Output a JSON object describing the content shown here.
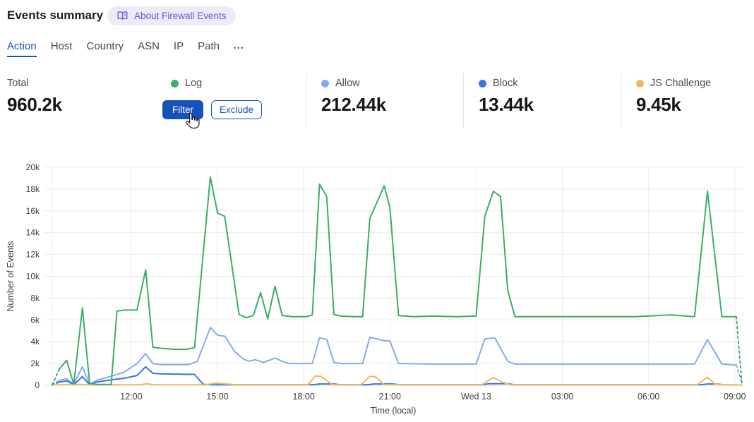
{
  "header": {
    "title": "Events summary",
    "about_badge": "About Firewall Events"
  },
  "tabs": {
    "items": [
      {
        "label": "Action",
        "active": true
      },
      {
        "label": "Host",
        "active": false
      },
      {
        "label": "Country",
        "active": false
      },
      {
        "label": "ASN",
        "active": false
      },
      {
        "label": "IP",
        "active": false
      },
      {
        "label": "Path",
        "active": false
      }
    ],
    "more": "•••"
  },
  "stats": {
    "total_label": "Total",
    "total_value": "960.2k",
    "log": {
      "label": "Log",
      "filter_button": "Filter",
      "exclude_button": "Exclude"
    },
    "allow": {
      "label": "Allow",
      "value": "212.44k"
    },
    "block": {
      "label": "Block",
      "value": "13.44k"
    },
    "js_challenge": {
      "label": "JS Challenge",
      "value": "9.45k"
    }
  },
  "chart_data": {
    "type": "line",
    "title": "",
    "xlabel": "Time (local)",
    "ylabel": "Number of Events",
    "grid": true,
    "legend_position": "in-stats-row-above-chart",
    "point_format": "[local_hour_decimal, events_in_thousands]",
    "x_axis": {
      "unit": "hours (24 = Wed 13 00:00)",
      "domain": [
        9.25,
        33.25
      ],
      "ticks": [
        {
          "t": 12,
          "label": "12:00"
        },
        {
          "t": 15,
          "label": "15:00"
        },
        {
          "t": 18,
          "label": "18:00"
        },
        {
          "t": 21,
          "label": "21:00"
        },
        {
          "t": 24,
          "label": "Wed 13"
        },
        {
          "t": 27,
          "label": "03:00"
        },
        {
          "t": 30,
          "label": "06:00"
        },
        {
          "t": 33,
          "label": "09:00"
        }
      ]
    },
    "y_axis": {
      "unit": "events",
      "max": 20000,
      "tick_step": 2000,
      "tick_labels": [
        "0",
        "2k",
        "4k",
        "6k",
        "8k",
        "10k",
        "12k",
        "14k",
        "16k",
        "18k",
        "20k"
      ]
    },
    "series": [
      {
        "name": "Log",
        "color": "#3BAF66",
        "dash_start": true,
        "dash_end": true,
        "points": [
          [
            9.25,
            0.05
          ],
          [
            9.5,
            1.5
          ],
          [
            9.75,
            2.3
          ],
          [
            10,
            0.1
          ],
          [
            10.3,
            7.1
          ],
          [
            10.55,
            0.2
          ],
          [
            10.8,
            0.08
          ],
          [
            11.3,
            0.08
          ],
          [
            11.5,
            6.8
          ],
          [
            11.75,
            6.9
          ],
          [
            12.2,
            6.9
          ],
          [
            12.5,
            10.6
          ],
          [
            12.75,
            3.5
          ],
          [
            13,
            3.4
          ],
          [
            13.5,
            3.3
          ],
          [
            13.9,
            3.3
          ],
          [
            14.2,
            3.45
          ],
          [
            14.75,
            19.1
          ],
          [
            15,
            15.8
          ],
          [
            15.25,
            15.5
          ],
          [
            15.75,
            6.5
          ],
          [
            16,
            6.2
          ],
          [
            16.25,
            6.4
          ],
          [
            16.5,
            8.5
          ],
          [
            16.75,
            6.1
          ],
          [
            17,
            9.1
          ],
          [
            17.25,
            6.4
          ],
          [
            17.6,
            6.3
          ],
          [
            18.1,
            6.3
          ],
          [
            18.3,
            6.45
          ],
          [
            18.55,
            18.45
          ],
          [
            18.8,
            17.3
          ],
          [
            19.05,
            6.5
          ],
          [
            19.3,
            6.35
          ],
          [
            19.8,
            6.3
          ],
          [
            20.05,
            6.3
          ],
          [
            20.3,
            15.3
          ],
          [
            20.8,
            18.3
          ],
          [
            21,
            16.3
          ],
          [
            21.3,
            6.4
          ],
          [
            21.8,
            6.3
          ],
          [
            22.5,
            6.35
          ],
          [
            23.3,
            6.3
          ],
          [
            24,
            6.35
          ],
          [
            24.3,
            15.5
          ],
          [
            24.6,
            17.8
          ],
          [
            24.85,
            17.3
          ],
          [
            25.1,
            8.7
          ],
          [
            25.35,
            6.3
          ],
          [
            26.5,
            6.3
          ],
          [
            28,
            6.3
          ],
          [
            29.5,
            6.3
          ],
          [
            30.8,
            6.45
          ],
          [
            31.3,
            6.35
          ],
          [
            31.6,
            6.3
          ],
          [
            32.05,
            17.8
          ],
          [
            32.55,
            6.3
          ],
          [
            33.05,
            6.3
          ],
          [
            33.25,
            0.05
          ]
        ]
      },
      {
        "name": "Allow",
        "color": "#84ABEF",
        "dash_start": true,
        "dash_end": true,
        "points": [
          [
            9.25,
            0.05
          ],
          [
            9.5,
            0.45
          ],
          [
            9.75,
            0.6
          ],
          [
            10,
            0.1
          ],
          [
            10.3,
            1.7
          ],
          [
            10.55,
            0.1
          ],
          [
            10.8,
            0.45
          ],
          [
            11.3,
            0.85
          ],
          [
            11.75,
            1.2
          ],
          [
            12.2,
            2
          ],
          [
            12.5,
            2.9
          ],
          [
            12.75,
            2
          ],
          [
            13,
            1.9
          ],
          [
            14,
            1.9
          ],
          [
            14.3,
            2.2
          ],
          [
            14.75,
            5.3
          ],
          [
            15,
            4.6
          ],
          [
            15.25,
            4.5
          ],
          [
            15.6,
            3.1
          ],
          [
            15.9,
            2.4
          ],
          [
            16.1,
            2.2
          ],
          [
            16.3,
            2.35
          ],
          [
            16.6,
            2.1
          ],
          [
            17,
            2.5
          ],
          [
            17.25,
            2.2
          ],
          [
            17.5,
            2
          ],
          [
            18.3,
            2
          ],
          [
            18.55,
            4.35
          ],
          [
            18.8,
            4.2
          ],
          [
            19.05,
            2.1
          ],
          [
            19.3,
            2
          ],
          [
            20.05,
            2
          ],
          [
            20.3,
            4.4
          ],
          [
            20.8,
            4.1
          ],
          [
            21,
            4.05
          ],
          [
            21.3,
            2
          ],
          [
            22.5,
            1.95
          ],
          [
            24,
            1.95
          ],
          [
            24.3,
            4.25
          ],
          [
            24.65,
            4.35
          ],
          [
            25.1,
            2.2
          ],
          [
            25.35,
            1.95
          ],
          [
            27,
            1.95
          ],
          [
            29.5,
            1.95
          ],
          [
            31.6,
            1.95
          ],
          [
            32.05,
            4.2
          ],
          [
            32.55,
            1.95
          ],
          [
            33.05,
            1.85
          ],
          [
            33.25,
            0.2
          ]
        ]
      },
      {
        "name": "Block",
        "color": "#3B74E3",
        "dash_start": true,
        "dash_end": false,
        "points": [
          [
            9.25,
            0.02
          ],
          [
            9.5,
            0.3
          ],
          [
            9.75,
            0.4
          ],
          [
            10,
            0.05
          ],
          [
            10.3,
            0.8
          ],
          [
            10.55,
            0.05
          ],
          [
            10.8,
            0.3
          ],
          [
            11.3,
            0.5
          ],
          [
            11.75,
            0.65
          ],
          [
            12.2,
            0.9
          ],
          [
            12.5,
            1.7
          ],
          [
            12.75,
            1.1
          ],
          [
            13,
            1.05
          ],
          [
            14.2,
            1
          ],
          [
            14.5,
            0.1
          ],
          [
            14.75,
            0.05
          ],
          [
            18.3,
            0.05
          ],
          [
            18.55,
            0.12
          ],
          [
            19.05,
            0.12
          ],
          [
            19.3,
            0.05
          ],
          [
            20.2,
            0.05
          ],
          [
            20.45,
            0.12
          ],
          [
            21.1,
            0.12
          ],
          [
            21.35,
            0.05
          ],
          [
            24.2,
            0.05
          ],
          [
            24.45,
            0.15
          ],
          [
            25.1,
            0.15
          ],
          [
            25.35,
            0.05
          ],
          [
            31.8,
            0.05
          ],
          [
            32.05,
            0.12
          ],
          [
            32.4,
            0.12
          ],
          [
            32.6,
            0.05
          ],
          [
            33.25,
            0.03
          ]
        ]
      },
      {
        "name": "JS Challenge",
        "color": "#F0B760",
        "dash_start": false,
        "dash_end": false,
        "points": [
          [
            9.25,
            0.04
          ],
          [
            10.2,
            0.08
          ],
          [
            10.5,
            0.04
          ],
          [
            12.3,
            0.06
          ],
          [
            12.55,
            0.15
          ],
          [
            12.8,
            0.05
          ],
          [
            14.6,
            0.05
          ],
          [
            14.95,
            0.2
          ],
          [
            15.3,
            0.12
          ],
          [
            15.7,
            0.05
          ],
          [
            18.15,
            0.05
          ],
          [
            18.4,
            0.85
          ],
          [
            18.6,
            0.82
          ],
          [
            19,
            0.06
          ],
          [
            20,
            0.06
          ],
          [
            20.3,
            0.82
          ],
          [
            20.5,
            0.78
          ],
          [
            20.8,
            0.06
          ],
          [
            24.2,
            0.06
          ],
          [
            24.6,
            0.72
          ],
          [
            24.9,
            0.3
          ],
          [
            25.2,
            0.05
          ],
          [
            31.7,
            0.05
          ],
          [
            32.05,
            0.75
          ],
          [
            32.3,
            0.12
          ],
          [
            32.6,
            0.04
          ],
          [
            33.25,
            0.03
          ]
        ]
      }
    ]
  }
}
